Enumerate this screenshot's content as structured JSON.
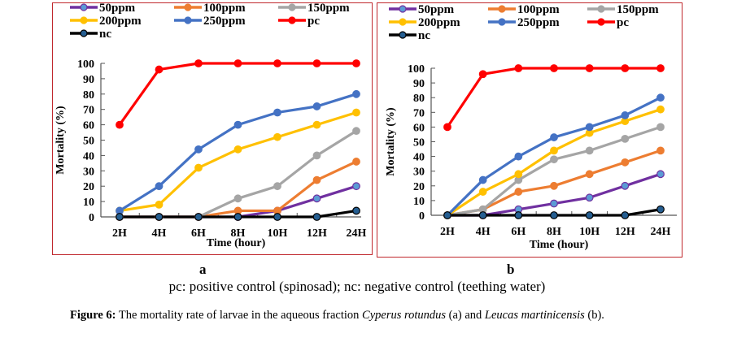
{
  "chart_data": [
    {
      "type": "line",
      "panel": "a",
      "title": "",
      "xlabel": "Time (hour)",
      "ylabel": "Mortality (%)",
      "categories": [
        "2H",
        "4H",
        "6H",
        "8H",
        "10H",
        "12H",
        "24H"
      ],
      "ylim": [
        0,
        100
      ],
      "yticks": [
        0,
        10,
        20,
        30,
        40,
        50,
        60,
        70,
        80,
        90,
        100
      ],
      "grid": false,
      "legend_position": "top",
      "series": [
        {
          "name": "50ppm",
          "color": "#7030a0",
          "marker": "#5b9bd5",
          "values": [
            0,
            0,
            0,
            0,
            4,
            12,
            20
          ]
        },
        {
          "name": "100ppm",
          "color": "#ed7d31",
          "marker": "#ed7d31",
          "values": [
            0,
            0,
            0,
            4,
            4,
            24,
            36
          ]
        },
        {
          "name": "150ppm",
          "color": "#a5a5a5",
          "marker": "#a5a5a5",
          "values": [
            0,
            0,
            0,
            12,
            20,
            40,
            56
          ]
        },
        {
          "name": "200ppm",
          "color": "#ffc000",
          "marker": "#ffc000",
          "values": [
            4,
            8,
            32,
            44,
            52,
            60,
            68
          ]
        },
        {
          "name": "250ppm",
          "color": "#4472c4",
          "marker": "#4472c4",
          "values": [
            4,
            20,
            44,
            60,
            68,
            72,
            80
          ]
        },
        {
          "name": "pc",
          "color": "#ff0000",
          "marker": "#ff0000",
          "values": [
            60,
            96,
            100,
            100,
            100,
            100,
            100
          ]
        },
        {
          "name": "nc",
          "color": "#000000",
          "marker": "#255e91",
          "values": [
            0,
            0,
            0,
            0,
            0,
            0,
            4
          ]
        }
      ]
    },
    {
      "type": "line",
      "panel": "b",
      "title": "",
      "xlabel": "Time (hour)",
      "ylabel": "Mortality (%)",
      "categories": [
        "2H",
        "4H",
        "6H",
        "8H",
        "10H",
        "12H",
        "24H"
      ],
      "ylim": [
        0,
        100
      ],
      "yticks": [
        0,
        10,
        20,
        30,
        40,
        50,
        60,
        70,
        80,
        90,
        100
      ],
      "grid": false,
      "legend_position": "top",
      "series": [
        {
          "name": "50ppm",
          "color": "#7030a0",
          "marker": "#5b9bd5",
          "values": [
            0,
            0,
            4,
            8,
            12,
            20,
            28
          ]
        },
        {
          "name": "100ppm",
          "color": "#ed7d31",
          "marker": "#ed7d31",
          "values": [
            0,
            4,
            16,
            20,
            28,
            36,
            44
          ]
        },
        {
          "name": "150ppm",
          "color": "#a5a5a5",
          "marker": "#a5a5a5",
          "values": [
            0,
            4,
            24,
            38,
            44,
            52,
            60
          ]
        },
        {
          "name": "200ppm",
          "color": "#ffc000",
          "marker": "#ffc000",
          "values": [
            0,
            16,
            28,
            44,
            56,
            64,
            72
          ]
        },
        {
          "name": "250ppm",
          "color": "#4472c4",
          "marker": "#4472c4",
          "values": [
            0,
            24,
            40,
            53,
            60,
            68,
            80
          ]
        },
        {
          "name": "pc",
          "color": "#ff0000",
          "marker": "#ff0000",
          "values": [
            60,
            96,
            100,
            100,
            100,
            100,
            100
          ]
        },
        {
          "name": "nc",
          "color": "#000000",
          "marker": "#255e91",
          "values": [
            0,
            0,
            0,
            0,
            0,
            0,
            4
          ]
        }
      ]
    }
  ],
  "panel_labels": {
    "a": "a",
    "b": "b"
  },
  "note": "pc: positive control (spinosad); nc: negative control (teething water)",
  "caption": {
    "label": "Figure 6:",
    "text_1": " The mortality rate of larvae in the aqueous fraction ",
    "species_a": "Cyperus rotundus",
    "text_2": " (a) and ",
    "species_b": "Leucas martinicensis",
    "text_3": " (b)."
  }
}
